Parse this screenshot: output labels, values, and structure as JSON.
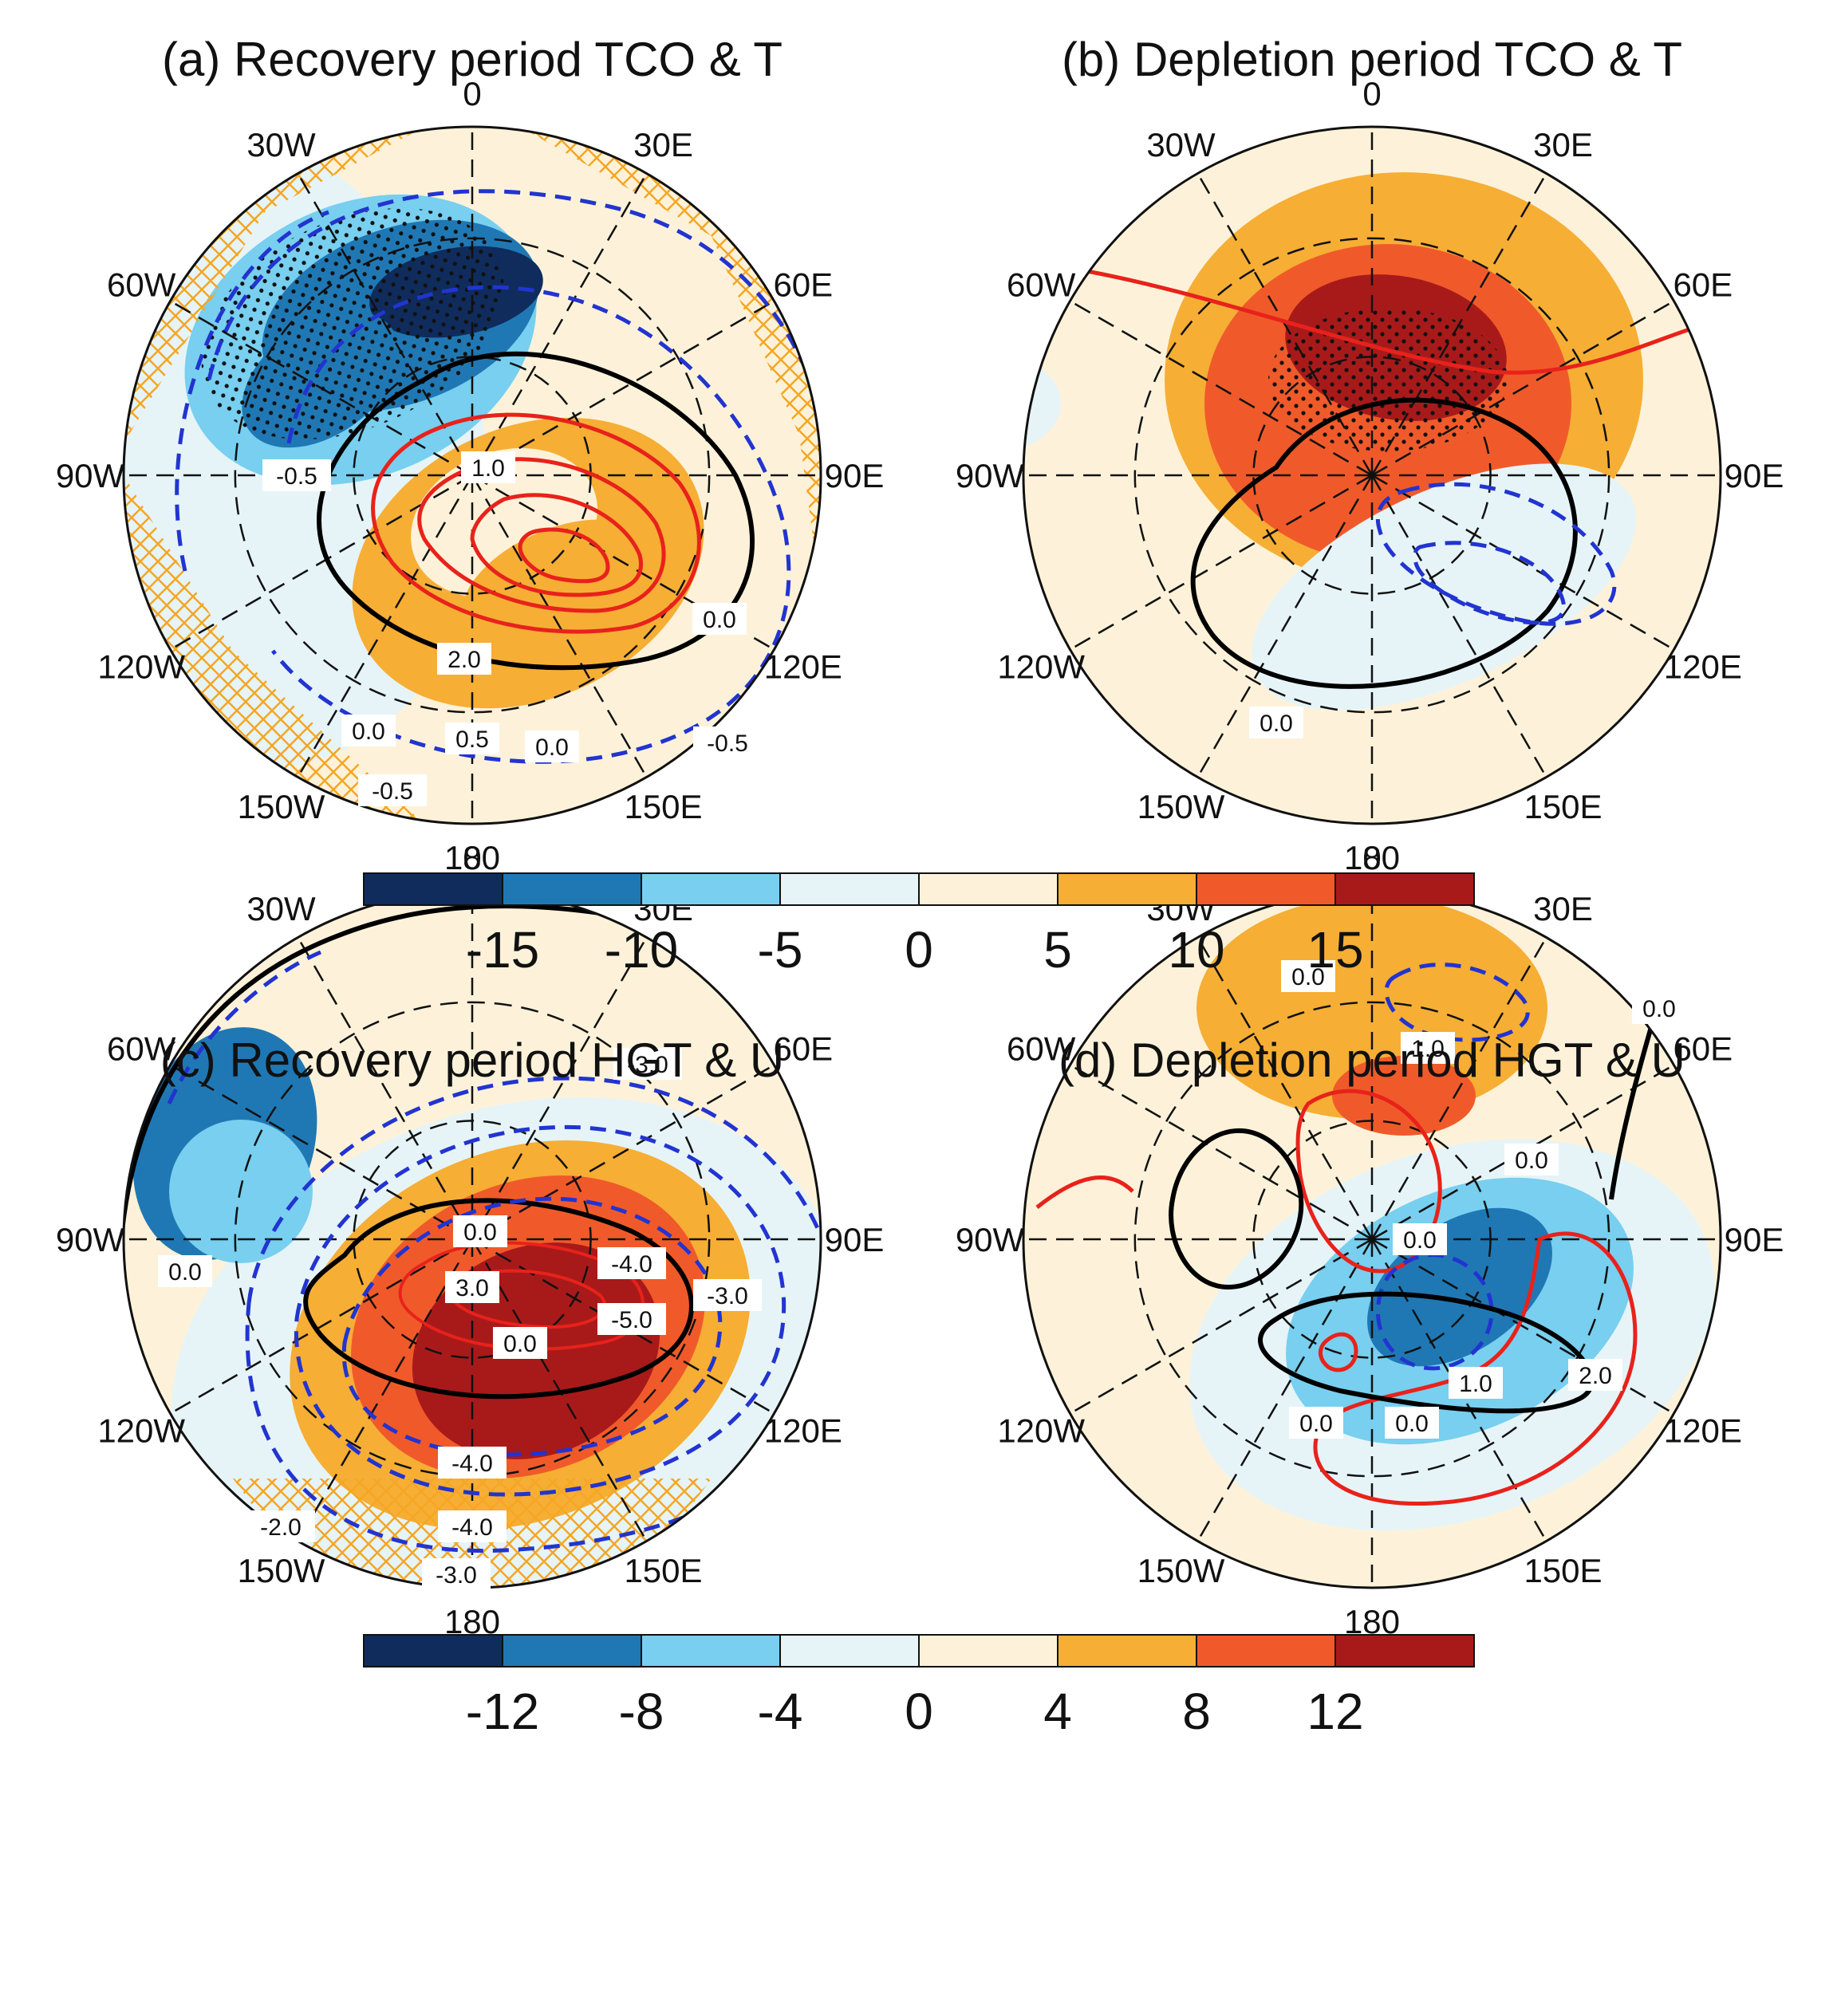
{
  "panels": [
    {
      "title": "(a) Recovery period TCO & T",
      "lon_labels": [
        "0",
        "30E",
        "60E",
        "90E",
        "120E",
        "150E",
        "180",
        "150W",
        "120W",
        "90W",
        "60W",
        "30W"
      ],
      "contour_labels": [
        "-0.5",
        "1.0",
        "0.0",
        "2.0",
        "0.0",
        "0.5",
        "0.0",
        "-0.5",
        "-0.5"
      ]
    },
    {
      "title": "(b) Depletion period TCO & T",
      "lon_labels": [
        "0",
        "30E",
        "60E",
        "90E",
        "120E",
        "150E",
        "180",
        "150W",
        "120W",
        "90W",
        "60W",
        "30W"
      ],
      "contour_labels": [
        "0.0"
      ]
    },
    {
      "title": "(c) Recovery period HGT & U",
      "lon_labels": [
        "0",
        "30E",
        "60E",
        "90E",
        "120E",
        "150E",
        "180",
        "150W",
        "120W",
        "90W",
        "60W",
        "30W"
      ],
      "contour_labels": [
        "-3.0",
        "0.0",
        "3.0",
        "-4.0",
        "-3.0",
        "0.0",
        "-5.0",
        "-4.0",
        "-4.0",
        "-2.0",
        "-3.0",
        "0.0"
      ]
    },
    {
      "title": "(d) Depletion period HGT & U",
      "lon_labels": [
        "0",
        "30E",
        "60E",
        "90E",
        "120E",
        "150E",
        "180",
        "150W",
        "120W",
        "90W",
        "60W",
        "30W"
      ],
      "contour_labels": [
        "0.0",
        "0.0",
        "1.0",
        "0.0",
        "0.0",
        "1.0",
        "2.0",
        "0.0",
        "0.0"
      ]
    }
  ],
  "colors": {
    "fill_levels": [
      "#0f2c5c",
      "#1f78b4",
      "#78cfef",
      "#e6f4f8",
      "#fdf2d9",
      "#f6ae35",
      "#f05a2a",
      "#a81a1a"
    ],
    "positive_contour": "#e8221b",
    "negative_contour": "#2234d0",
    "zero_contour": "#000000",
    "hatch": "#f5a623"
  },
  "colorbars": [
    {
      "ticks": [
        "-15",
        "-10",
        "-5",
        "0",
        "5",
        "10",
        "15"
      ]
    },
    {
      "ticks": [
        "-12",
        "-8",
        "-4",
        "0",
        "4",
        "8",
        "12"
      ]
    }
  ],
  "chart_data": [
    {
      "type": "heatmap",
      "projection": "polar stereographic (south pole)",
      "title": "(a) Recovery period TCO & T",
      "colorbar_levels": [
        -15,
        -10,
        -5,
        0,
        5,
        10,
        15
      ],
      "contour_levels_labeled": [
        -0.5,
        1.0,
        0.0,
        2.0,
        0.0,
        0.5,
        0.0,
        -0.5,
        -0.5
      ],
      "contour_interval": 0.5,
      "features": [
        "negative shading (about -15) near 0-30W",
        "positive shading (about 10) near 150E",
        "stippling and hatching over negative region"
      ]
    },
    {
      "type": "heatmap",
      "projection": "polar stereographic (south pole)",
      "title": "(b) Depletion period TCO & T",
      "colorbar_levels": [
        -15,
        -10,
        -5,
        0,
        5,
        10,
        15
      ],
      "contour_levels_labeled": [
        0.0
      ],
      "features": [
        "positive shading (about 15) near 0-30E",
        "weak negative shading near 120E-150E"
      ]
    },
    {
      "type": "heatmap",
      "projection": "polar stereographic (south pole)",
      "title": "(c) Recovery period HGT & U",
      "colorbar_levels": [
        -12,
        -8,
        -4,
        0,
        4,
        8,
        12
      ],
      "contour_levels_labeled": [
        -3.0,
        0.0,
        3.0,
        -4.0,
        -3.0,
        0.0,
        -5.0,
        -4.0,
        -4.0,
        -2.0,
        -3.0,
        0.0
      ],
      "contour_interval": 1.0,
      "features": [
        "strong positive shading (about 12) near 150E",
        "negative shading near 60W-90W"
      ]
    },
    {
      "type": "heatmap",
      "projection": "polar stereographic (south pole)",
      "title": "(d) Depletion period HGT & U",
      "colorbar_levels": [
        -12,
        -8,
        -4,
        0,
        4,
        8,
        12
      ],
      "contour_levels_labeled": [
        0.0,
        0.0,
        1.0,
        0.0,
        0.0,
        1.0,
        2.0,
        0.0,
        0.0
      ],
      "contour_interval": 1.0,
      "features": [
        "positive shading near 0",
        "negative shading (about -8) near 120E-150E"
      ]
    }
  ]
}
